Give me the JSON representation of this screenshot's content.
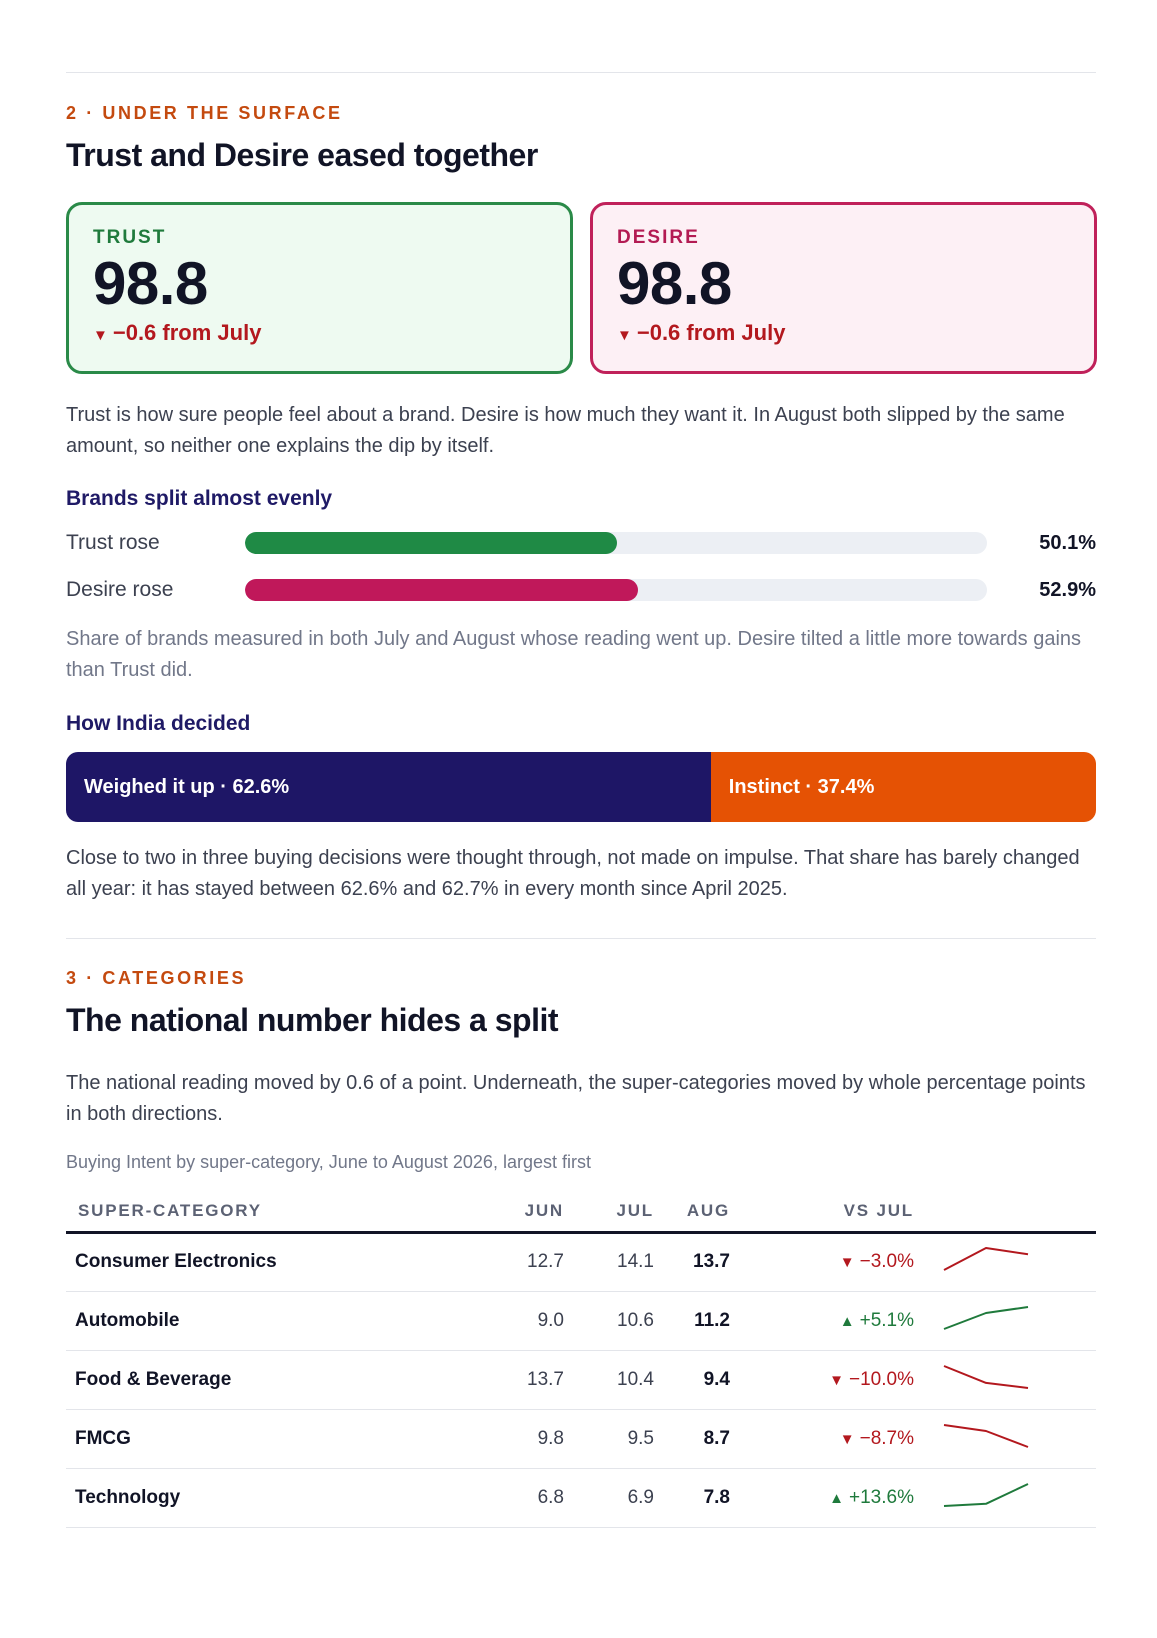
{
  "section2": {
    "eyebrow": "2 · UNDER THE SURFACE",
    "title": "Trust and Desire eased together",
    "trust_card": {
      "label": "TRUST",
      "value": "98.8",
      "change": "−0.6 from July",
      "accent": "#2a8a48"
    },
    "desire_card": {
      "label": "DESIRE",
      "value": "98.8",
      "change": "−0.6 from July",
      "accent": "#c0215a"
    },
    "intro": "Trust is how sure people feel about a brand. Desire is how much they want it. In August both slipped by the same amount, so neither one explains the dip by itself.",
    "brands_heading": "Brands split almost evenly",
    "bars": [
      {
        "label": "Trust rose",
        "value": 50.1,
        "value_text": "50.1%",
        "color": "#1f8a45"
      },
      {
        "label": "Desire rose",
        "value": 52.9,
        "value_text": "52.9%",
        "color": "#c0185a"
      }
    ],
    "bars_note": "Share of brands measured in both July and August whose reading went up. Desire tilted a little more towards gains than Trust did.",
    "decided_heading": "How India decided",
    "decided": [
      {
        "label": "Weighed it up · 62.6%",
        "value": 62.6,
        "color": "#1e1666"
      },
      {
        "label": "Instinct · 37.4%",
        "value": 37.4,
        "color": "#e55204"
      }
    ],
    "decided_note": "Close to two in three buying decisions were thought through, not made on impulse. That share has barely changed all year: it has stayed between 62.6% and 62.7% in every month since April 2025."
  },
  "section3": {
    "eyebrow": "3 · CATEGORIES",
    "title": "The national number hides a split",
    "intro": "The national reading moved by 0.6 of a point. Underneath, the super-categories moved by whole percentage points in both directions.",
    "caption": "Buying Intent by super-category, June to August 2026, largest first",
    "table": {
      "headers": [
        "SUPER-CATEGORY",
        "JUN",
        "JUL",
        "AUG",
        "VS JUL"
      ],
      "rows": [
        {
          "name": "Consumer Electronics",
          "jun": "12.7",
          "jul": "14.1",
          "aug": "13.7",
          "vs": "−3.0%",
          "dir": "down"
        },
        {
          "name": "Automobile",
          "jun": "9.0",
          "jul": "10.6",
          "aug": "11.2",
          "vs": "+5.1%",
          "dir": "up"
        },
        {
          "name": "Food & Beverage",
          "jun": "13.7",
          "jul": "10.4",
          "aug": "9.4",
          "vs": "−10.0%",
          "dir": "down"
        },
        {
          "name": "FMCG",
          "jun": "9.8",
          "jul": "9.5",
          "aug": "8.7",
          "vs": "−8.7%",
          "dir": "down"
        },
        {
          "name": "Technology",
          "jun": "6.8",
          "jul": "6.9",
          "aug": "7.8",
          "vs": "+13.6%",
          "dir": "up"
        }
      ]
    },
    "colors": {
      "down": "#b3181e",
      "up": "#1f7a3c"
    }
  }
}
